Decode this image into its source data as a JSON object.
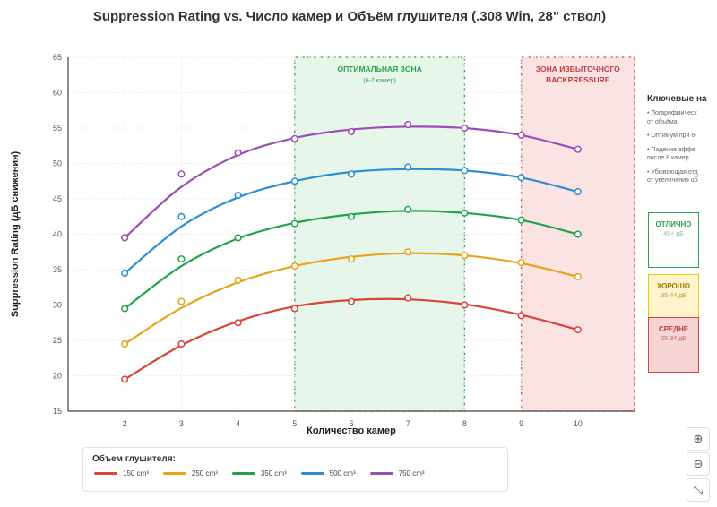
{
  "chart_data": {
    "type": "line",
    "title": "Suppression Rating vs. Число камер и Объём глушителя (.308 Win, 28\" ствол)",
    "xlabel": "Количество камер",
    "ylabel": "Suppression Rating (дБ снижения)",
    "xlim": [
      1,
      11
    ],
    "ylim": [
      15,
      65
    ],
    "x_ticks": [
      2,
      3,
      4,
      5,
      6,
      7,
      8,
      9,
      10
    ],
    "y_ticks": [
      15,
      20,
      25,
      30,
      35,
      40,
      45,
      50,
      55,
      60,
      65
    ],
    "grid": true,
    "x": [
      2,
      3,
      4,
      5,
      6,
      7,
      8,
      9,
      10
    ],
    "series": [
      {
        "name": "150 cm³",
        "color": "#d9443a",
        "values": [
          19.5,
          24.5,
          27.5,
          29.5,
          30.5,
          31,
          30,
          28.5,
          26.5
        ],
        "fit": [
          19.5,
          24.3,
          27.7,
          29.8,
          30.7,
          30.8,
          30.1,
          28.6,
          26.5
        ]
      },
      {
        "name": "250 cm³",
        "color": "#e9a21c",
        "values": [
          24.5,
          30.5,
          33.5,
          35.5,
          36.5,
          37.5,
          37,
          36,
          34
        ],
        "fit": [
          24.5,
          29.6,
          33.2,
          35.5,
          36.8,
          37.3,
          37.0,
          35.9,
          34.0
        ]
      },
      {
        "name": "350 cm³",
        "color": "#22a24c",
        "values": [
          29.5,
          36.5,
          39.5,
          41.5,
          42.5,
          43.5,
          43,
          42,
          40
        ],
        "fit": [
          29.5,
          35.5,
          39.4,
          41.6,
          42.8,
          43.3,
          43.0,
          42.0,
          40.0
        ]
      },
      {
        "name": "500 cm³",
        "color": "#2d8fd0",
        "values": [
          34.5,
          42.5,
          45.5,
          47.5,
          48.5,
          49.5,
          49,
          48,
          46
        ],
        "fit": [
          34.5,
          41.1,
          45.2,
          47.5,
          48.8,
          49.2,
          49.0,
          48.0,
          46.0
        ]
      },
      {
        "name": "750 cm³",
        "color": "#9b4fb4",
        "values": [
          39.5,
          48.5,
          51.5,
          53.5,
          54.5,
          55.5,
          55,
          54,
          52
        ],
        "fit": [
          39.5,
          46.7,
          51.2,
          53.6,
          54.8,
          55.2,
          55.0,
          54.0,
          52.0
        ]
      }
    ],
    "zones": [
      {
        "label": "ОПТИМАЛЬНАЯ ЗОНА",
        "sublabel": "(6-7 камер)",
        "x_range": [
          5,
          8
        ],
        "fill": "#e6f6ea",
        "stroke": "#2ca24c",
        "text_color": "#2ca24c"
      },
      {
        "label": "ЗОНА ИЗБЫТОЧНОГО",
        "label2": "BACKPRESSURE",
        "x_range": [
          9,
          11
        ],
        "fill": "#fbe3e3",
        "stroke": "#d24444",
        "text_color": "#c23b3b"
      }
    ],
    "legend": {
      "title": "Объем глушителя:",
      "position": "bottom"
    }
  },
  "side_panel": {
    "title": "Ключевые на",
    "notes": [
      "• Логарифмическ",
      "от объёма",
      "• Оптимум при 6-",
      "• Падение эффе",
      "после 8 камер",
      "• Убывающая отд",
      "от увеличения об"
    ],
    "categories": [
      {
        "label": "ОТЛИЧНО",
        "range": "45+ дБ",
        "color": "#2ca24c",
        "bg": "#ffffff"
      },
      {
        "label": "ХОРОШО",
        "range": "35-44 дБ",
        "color": "#b88a00",
        "bg": "#fff4cc",
        "border": "#f0c419"
      },
      {
        "label": "СРЕДНЕ",
        "range": "25-34 дБ",
        "color": "#c23b3b",
        "bg": "#f6d4d4",
        "border": "#d24444"
      }
    ]
  },
  "zoom_controls": {
    "zoom_in": "⊕",
    "zoom_out": "⊖",
    "fit": "⤡"
  }
}
